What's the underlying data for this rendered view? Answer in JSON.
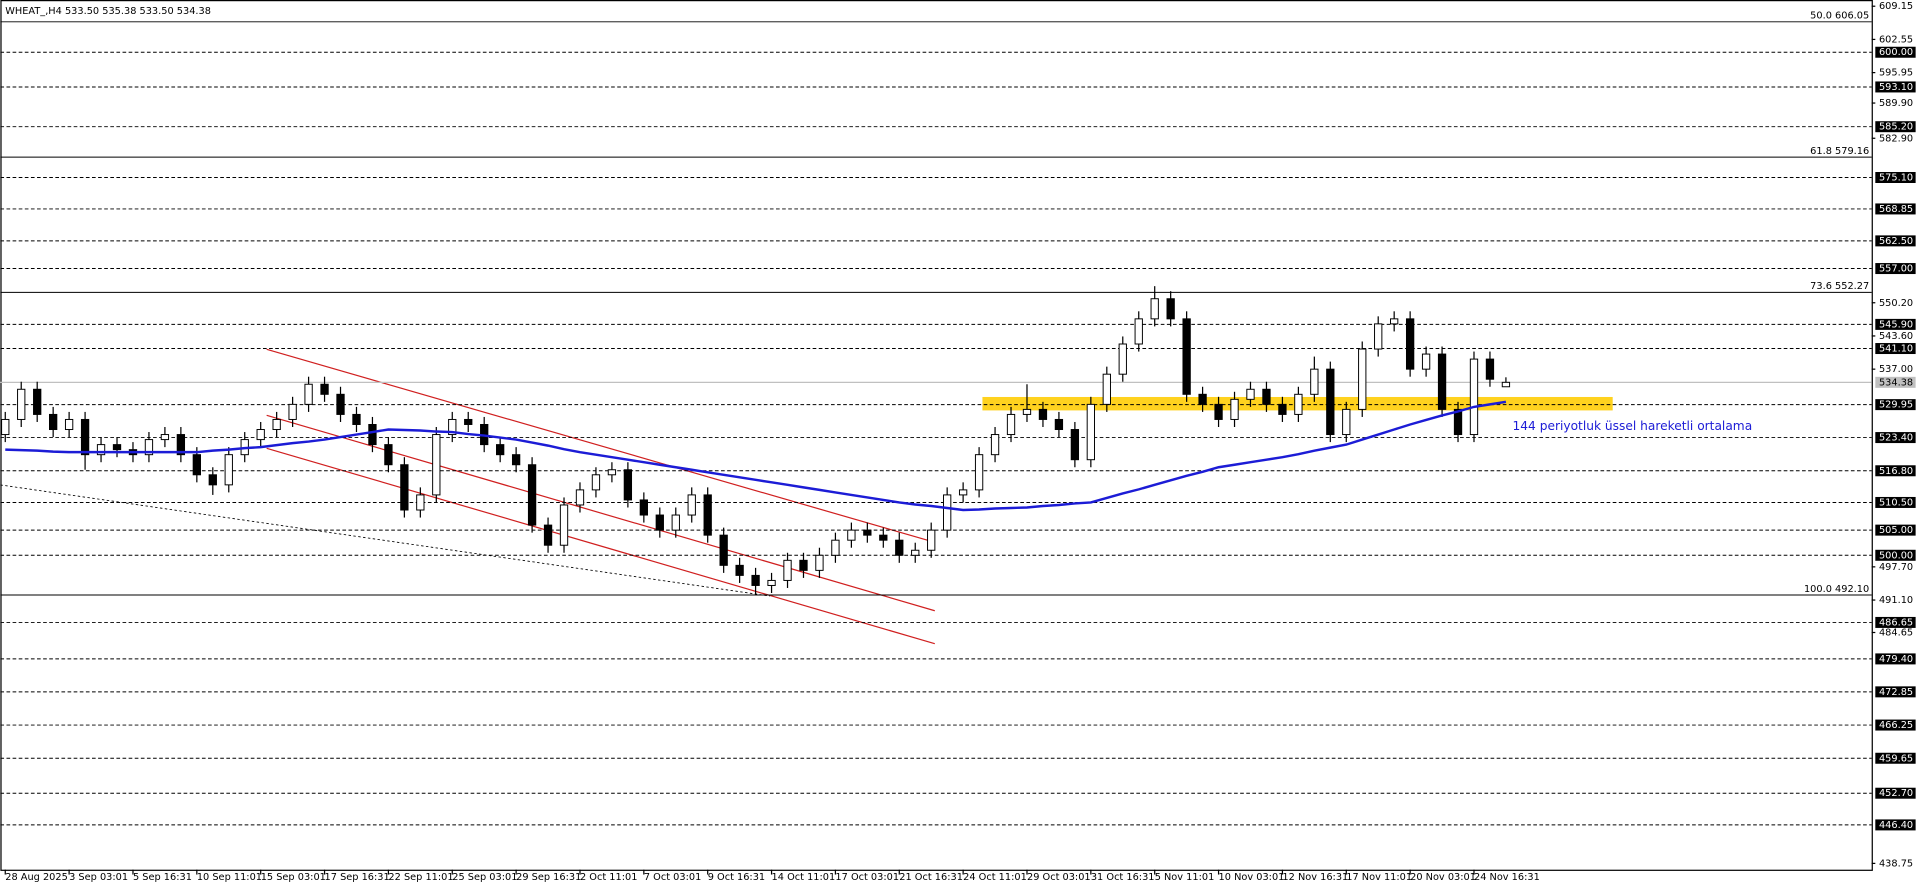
{
  "chart_data": {
    "type": "candlestick",
    "title": "WHEAT_,H4  533.50 535.38 533.50 534.38",
    "categories": [
      "28 Aug 2025",
      null,
      null,
      null,
      "3 Sep 03:01",
      null,
      null,
      null,
      "5 Sep 16:31",
      null,
      null,
      null,
      "10 Sep 11:01",
      null,
      null,
      null,
      "15 Sep 03:01",
      null,
      null,
      null,
      "17 Sep 16:31",
      null,
      null,
      null,
      "22 Sep 11:01",
      null,
      null,
      null,
      "25 Sep 03:01",
      null,
      null,
      null,
      "29 Sep 16:31",
      null,
      null,
      null,
      "2 Oct 11:01",
      null,
      null,
      null,
      "7 Oct 03:01",
      null,
      null,
      null,
      "9 Oct 16:31",
      null,
      null,
      null,
      "14 Oct 11:01",
      null,
      null,
      null,
      "17 Oct 03:01",
      null,
      null,
      null,
      "21 Oct 16:31",
      null,
      null,
      null,
      "24 Oct 11:01",
      null,
      null,
      null,
      "29 Oct 03:01",
      null,
      null,
      null,
      "31 Oct 16:31",
      null,
      null,
      null,
      "5 Nov 11:01",
      null,
      null,
      null,
      "10 Nov 03:01",
      null,
      null,
      null,
      "12 Nov 16:31",
      null,
      null,
      null,
      "17 Nov 11:01",
      null,
      null,
      null,
      "20 Nov 03:01",
      null,
      null,
      null,
      "24 Nov 16:31",
      null,
      null
    ],
    "open": [
      524,
      527,
      533,
      528,
      525,
      527,
      520,
      522,
      521,
      520,
      523,
      524,
      520,
      516,
      514,
      520,
      523,
      525,
      527,
      530,
      534,
      532,
      528,
      526,
      522,
      518,
      509,
      512,
      524,
      527,
      526,
      522,
      520,
      518,
      506,
      502,
      510,
      513,
      516,
      517,
      511,
      508,
      505,
      508,
      512,
      504,
      498,
      496,
      494,
      495,
      499,
      497,
      500,
      503,
      505,
      504,
      503,
      500,
      501,
      505,
      512,
      513,
      520,
      524,
      528,
      529,
      527,
      525,
      519,
      530,
      536,
      542,
      547,
      551,
      547,
      532,
      530,
      527,
      531,
      533,
      530,
      528,
      532,
      537,
      524,
      529,
      541,
      546,
      547,
      537,
      540,
      529,
      524,
      539,
      533.5
    ],
    "high": [
      528.5,
      534.5,
      534.5,
      529.5,
      528.5,
      528.5,
      523.5,
      523.5,
      522.5,
      524.5,
      525.5,
      525.5,
      521.5,
      517.5,
      521.5,
      524.5,
      526.5,
      528.5,
      531.5,
      535.5,
      535.5,
      533.5,
      529.5,
      527.5,
      523.5,
      519.5,
      513.5,
      525.5,
      528.5,
      528.5,
      527.5,
      523.5,
      521.5,
      519.5,
      507.5,
      511.5,
      514.5,
      517.5,
      518.5,
      518.5,
      512.5,
      509.5,
      509.5,
      513.5,
      513.5,
      505.5,
      499.5,
      497.5,
      496.5,
      500.5,
      500.5,
      501.5,
      504.5,
      506.5,
      506.5,
      505.5,
      504.5,
      502.5,
      506.5,
      513.5,
      514.5,
      521.5,
      525.5,
      529.5,
      534,
      530.5,
      528.5,
      526.5,
      531.5,
      537.5,
      543.5,
      548.5,
      553.5,
      552.5,
      548.5,
      533.5,
      531.5,
      532.5,
      534.5,
      534.5,
      531.5,
      533.5,
      539.5,
      538.5,
      530.5,
      542.5,
      547.5,
      548.5,
      548.5,
      541.5,
      541.5,
      530.5,
      540.5,
      540.5,
      535.38
    ],
    "low": [
      522.5,
      525.5,
      526.5,
      523.5,
      523.5,
      517,
      518.5,
      519.5,
      518.5,
      518.5,
      521.5,
      518.5,
      514.5,
      512,
      512.5,
      518.5,
      521.5,
      523.5,
      525.5,
      528.5,
      530.5,
      526.5,
      524.5,
      520.5,
      516.5,
      507.5,
      507.5,
      510.5,
      522.5,
      524.5,
      520.5,
      518.5,
      516.5,
      504.5,
      500.5,
      500.5,
      508.5,
      511.5,
      514.5,
      509.5,
      506.5,
      503.5,
      503.5,
      506.5,
      502.5,
      496.5,
      494.5,
      492.1,
      492.5,
      493.5,
      495.5,
      495.5,
      498.5,
      501.5,
      502.5,
      501.5,
      498.5,
      498.5,
      499.5,
      503.5,
      510.5,
      511.5,
      518.5,
      522.5,
      526.5,
      525.5,
      523.5,
      517.5,
      517.5,
      528.5,
      534.5,
      540.5,
      545.5,
      545.5,
      530.5,
      528.5,
      525.5,
      525.5,
      529.5,
      528.5,
      526.5,
      526.5,
      530.5,
      522.5,
      522.5,
      527.5,
      539.5,
      544.5,
      535.5,
      535.5,
      527.5,
      522.5,
      522.5,
      533.5,
      533.5
    ],
    "close": [
      527,
      533,
      528,
      525,
      527,
      520,
      522,
      521,
      520,
      523,
      524,
      520,
      516,
      514,
      520,
      523,
      525,
      527,
      530,
      534,
      532,
      528,
      526,
      522,
      518,
      509,
      512,
      524,
      527,
      526,
      522,
      520,
      518,
      506,
      502,
      510,
      513,
      516,
      517,
      511,
      508,
      505,
      508,
      512,
      504,
      498,
      496,
      494,
      495,
      499,
      497,
      500,
      503,
      505,
      504,
      503,
      500,
      501,
      505,
      512,
      513,
      520,
      524,
      528,
      529,
      527,
      525,
      519,
      530,
      536,
      542,
      547,
      551,
      547,
      532,
      530,
      527,
      531,
      533,
      530,
      528,
      532,
      537,
      524,
      529,
      541,
      546,
      547,
      537,
      540,
      529,
      524,
      539,
      535,
      534.38
    ],
    "up_color": "#ffffff",
    "down_color": "#000000",
    "ema": {
      "name": "144 periyotluk üssel hareketli ortalama",
      "color": "#1c1cd6",
      "values": [
        521,
        520.9,
        520.8,
        520.6,
        520.5,
        520.5,
        520.5,
        520.5,
        520.5,
        520.5,
        520.5,
        520.5,
        520.5,
        520.8,
        521,
        521.3,
        521.5,
        521.9,
        522.3,
        522.6,
        523,
        523.5,
        524,
        524.5,
        525,
        524.9,
        524.8,
        524.6,
        524.5,
        524.1,
        523.8,
        523.4,
        523,
        522.4,
        521.8,
        521.1,
        520.5,
        520,
        519.5,
        519,
        518.5,
        518,
        517.5,
        517,
        516.5,
        516,
        515.5,
        515,
        514.5,
        514,
        513.5,
        513,
        512.5,
        512,
        511.5,
        511,
        510.5,
        510.1,
        509.8,
        509.4,
        509,
        509.1,
        509.3,
        509.4,
        509.5,
        509.8,
        510,
        510.3,
        510.5,
        511.4,
        512.3,
        513.1,
        514,
        514.9,
        515.8,
        516.6,
        517.5,
        518,
        518.5,
        519,
        519.5,
        520.1,
        520.8,
        521.4,
        522,
        523,
        524,
        525,
        526,
        526.9,
        527.8,
        528.6,
        529.5,
        530,
        530.5
      ]
    },
    "ylim": [
      437.5,
      609.9
    ],
    "yticks": [
      {
        "value": 609.15,
        "label": "609.15"
      },
      {
        "value": 602.55,
        "label": "602.55"
      },
      {
        "value": 595.95,
        "label": "595.95"
      },
      {
        "value": 589.9,
        "label": "589.90"
      },
      {
        "value": 582.9,
        "label": "582.90"
      },
      {
        "value": 550.2,
        "label": "550.20"
      },
      {
        "value": 543.6,
        "label": "543.60"
      },
      {
        "value": 537,
        "label": "537.00"
      },
      {
        "value": 497.7,
        "label": "497.70"
      },
      {
        "value": 491.1,
        "label": "491.10"
      },
      {
        "value": 484.65,
        "label": "484.65"
      },
      {
        "value": 438.75,
        "label": "438.75"
      }
    ],
    "levels": [
      {
        "value": 600,
        "label": "600.00"
      },
      {
        "value": 593.1,
        "label": "593.10"
      },
      {
        "value": 585.2,
        "label": "585.20"
      },
      {
        "value": 575.1,
        "label": "575.10"
      },
      {
        "value": 568.85,
        "label": "568.85"
      },
      {
        "value": 562.5,
        "label": "562.50"
      },
      {
        "value": 557,
        "label": "557.00"
      },
      {
        "value": 545.9,
        "label": "545.90"
      },
      {
        "value": 541.1,
        "label": "541.10"
      },
      {
        "value": 529.95,
        "label": "529.95"
      },
      {
        "value": 523.4,
        "label": "523.40"
      },
      {
        "value": 516.8,
        "label": "516.80"
      },
      {
        "value": 510.5,
        "label": "510.50"
      },
      {
        "value": 505,
        "label": "505.00"
      },
      {
        "value": 500,
        "label": "500.00"
      },
      {
        "value": 486.65,
        "label": "486.65"
      },
      {
        "value": 479.4,
        "label": "479.40"
      },
      {
        "value": 472.85,
        "label": "472.85"
      },
      {
        "value": 466.25,
        "label": "466.25"
      },
      {
        "value": 459.65,
        "label": "459.65"
      },
      {
        "value": 452.7,
        "label": "452.70"
      },
      {
        "value": 446.4,
        "label": "446.40"
      }
    ],
    "current_price": {
      "value": 534.38,
      "label": "534.38"
    },
    "fib_levels": [
      {
        "value": 606.05,
        "label": "50.0 606.05"
      },
      {
        "value": 579.16,
        "label": "61.8 579.16"
      },
      {
        "value": 552.27,
        "label": "73.6 552.27"
      },
      {
        "value": 492.1,
        "label": "100.0 492.10"
      }
    ]
  }
}
